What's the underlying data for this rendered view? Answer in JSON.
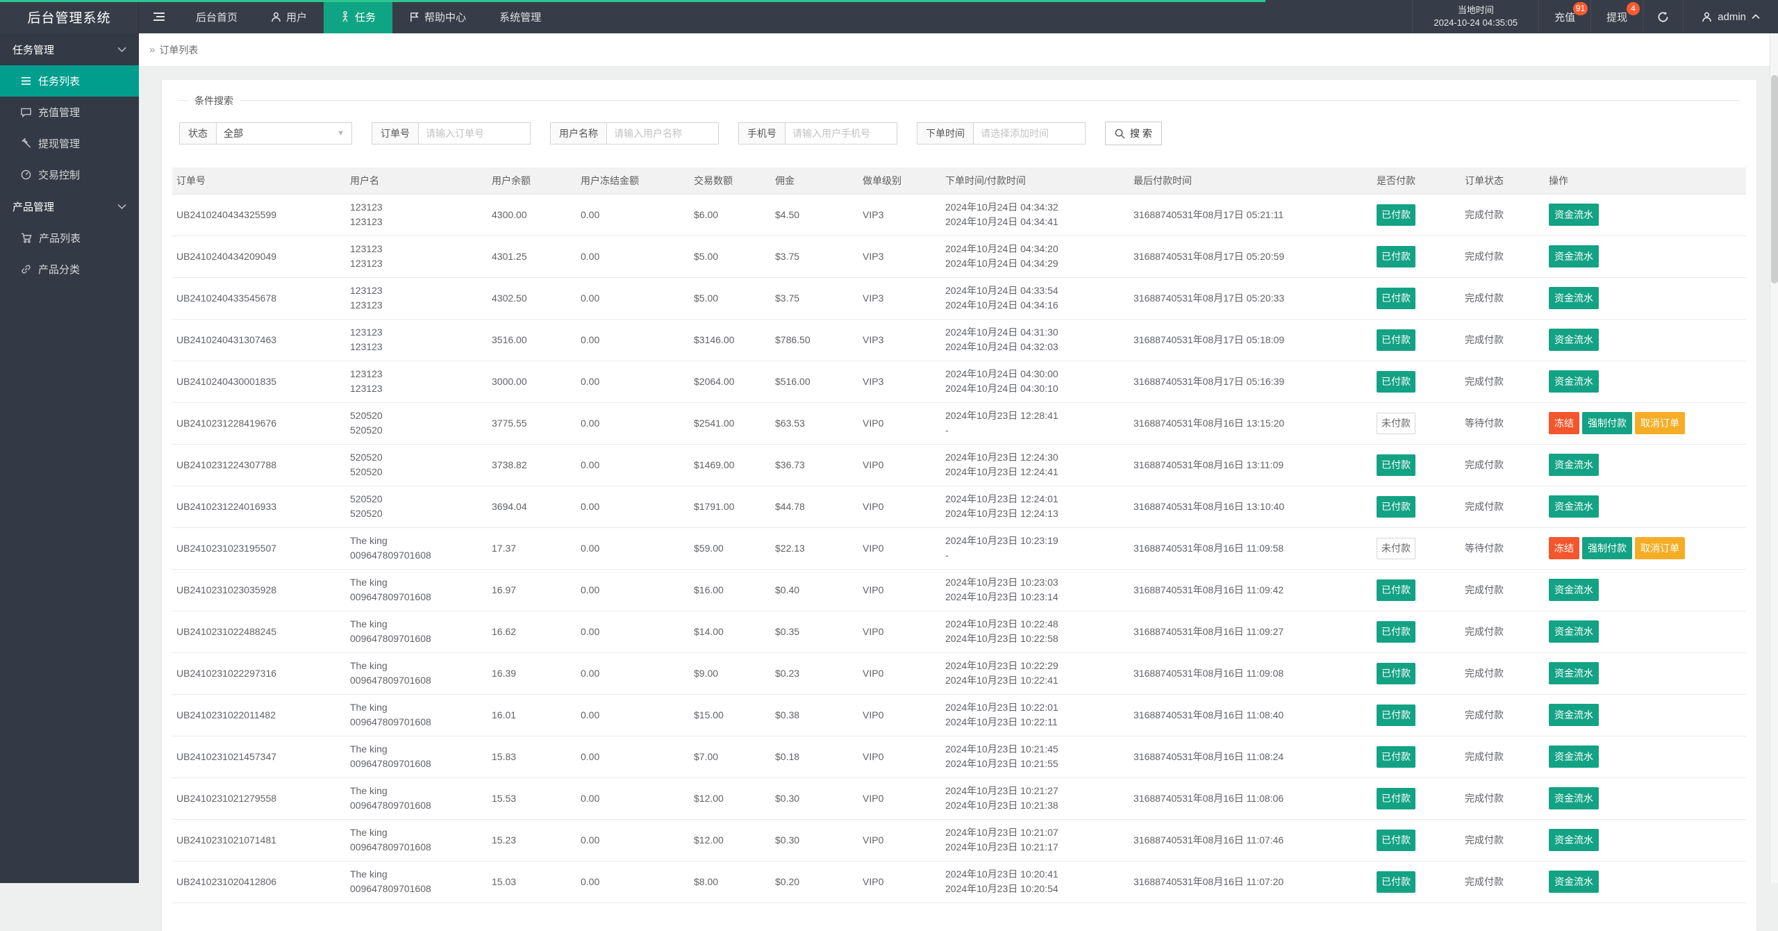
{
  "colors": {
    "teal": "#13a284",
    "red": "#f4572e",
    "amber": "#f6ad26",
    "nav_active": "#0fa584",
    "sidebar_active": "#019e8e",
    "badge_red": "#f85b32",
    "progress_green": "#2ec690"
  },
  "topbar": {
    "brand": "后台管理系统",
    "nav": [
      {
        "label": "后台首页"
      },
      {
        "label": "用户"
      },
      {
        "label": "任务",
        "active": true
      },
      {
        "label": "帮助中心"
      },
      {
        "label": "系统管理"
      }
    ],
    "local_time_label": "当地时间",
    "local_time": "2024-10-24 04:35:05",
    "recharge_label": "充值",
    "recharge_badge": "91",
    "withdraw_label": "提现",
    "withdraw_badge": "4",
    "username": "admin"
  },
  "sidebar": {
    "groups": [
      {
        "label": "任务管理",
        "items": [
          {
            "label": "任务列表",
            "active": true
          },
          {
            "label": "充值管理"
          },
          {
            "label": "提现管理"
          },
          {
            "label": "交易控制"
          }
        ]
      },
      {
        "label": "产品管理",
        "items": [
          {
            "label": "产品列表"
          },
          {
            "label": "产品分类"
          }
        ]
      }
    ]
  },
  "breadcrumb": "订单列表",
  "filters": {
    "legend": "条件搜索",
    "status_label": "状态",
    "status_value": "全部",
    "order_no_label": "订单号",
    "order_no_placeholder": "请输入订单号",
    "user_label": "用户名称",
    "user_placeholder": "请输入用户名称",
    "phone_label": "手机号",
    "phone_placeholder": "请输入用户手机号",
    "time_label": "下单时间",
    "time_placeholder": "请选择添加时间",
    "search_label": "搜 索"
  },
  "table": {
    "headers": [
      "订单号",
      "用户名",
      "用户余额",
      "用户冻结金额",
      "交易数额",
      "佣金",
      "做单级别",
      "下单时间/付款时间",
      "最后付款时间",
      "是否付款",
      "订单状态",
      "操作"
    ],
    "rows": [
      {
        "order_no": "UB2410240434325599",
        "user_line1": "123123",
        "user_line2": "123123",
        "balance": "4300.00",
        "frozen": "0.00",
        "amount": "$6.00",
        "commission": "$4.50",
        "level": "VIP3",
        "order_time": "2024年10月24日 04:34:32",
        "pay_time": "2024年10月24日 04:34:41",
        "last_pay_time": "31688740531年08月17日 05:21:11",
        "paid": true,
        "paid_label": "已付款",
        "status": "完成付款",
        "actions": [
          {
            "label": "资金流水",
            "type": "flow"
          }
        ]
      },
      {
        "order_no": "UB2410240434209049",
        "user_line1": "123123",
        "user_line2": "123123",
        "balance": "4301.25",
        "frozen": "0.00",
        "amount": "$5.00",
        "commission": "$3.75",
        "level": "VIP3",
        "order_time": "2024年10月24日 04:34:20",
        "pay_time": "2024年10月24日 04:34:29",
        "last_pay_time": "31688740531年08月17日 05:20:59",
        "paid": true,
        "paid_label": "已付款",
        "status": "完成付款",
        "actions": [
          {
            "label": "资金流水",
            "type": "flow"
          }
        ]
      },
      {
        "order_no": "UB2410240433545678",
        "user_line1": "123123",
        "user_line2": "123123",
        "balance": "4302.50",
        "frozen": "0.00",
        "amount": "$5.00",
        "commission": "$3.75",
        "level": "VIP3",
        "order_time": "2024年10月24日 04:33:54",
        "pay_time": "2024年10月24日 04:34:16",
        "last_pay_time": "31688740531年08月17日 05:20:33",
        "paid": true,
        "paid_label": "已付款",
        "status": "完成付款",
        "actions": [
          {
            "label": "资金流水",
            "type": "flow"
          }
        ]
      },
      {
        "order_no": "UB2410240431307463",
        "user_line1": "123123",
        "user_line2": "123123",
        "balance": "3516.00",
        "frozen": "0.00",
        "amount": "$3146.00",
        "commission": "$786.50",
        "level": "VIP3",
        "order_time": "2024年10月24日 04:31:30",
        "pay_time": "2024年10月24日 04:32:03",
        "last_pay_time": "31688740531年08月17日 05:18:09",
        "paid": true,
        "paid_label": "已付款",
        "status": "完成付款",
        "actions": [
          {
            "label": "资金流水",
            "type": "flow"
          }
        ]
      },
      {
        "order_no": "UB2410240430001835",
        "user_line1": "123123",
        "user_line2": "123123",
        "balance": "3000.00",
        "frozen": "0.00",
        "amount": "$2064.00",
        "commission": "$516.00",
        "level": "VIP3",
        "order_time": "2024年10月24日 04:30:00",
        "pay_time": "2024年10月24日 04:30:10",
        "last_pay_time": "31688740531年08月17日 05:16:39",
        "paid": true,
        "paid_label": "已付款",
        "status": "完成付款",
        "actions": [
          {
            "label": "资金流水",
            "type": "flow"
          }
        ]
      },
      {
        "order_no": "UB2410231228419676",
        "user_line1": "520520",
        "user_line2": "520520",
        "balance": "3775.55",
        "frozen": "0.00",
        "amount": "$2541.00",
        "commission": "$63.53",
        "level": "VIP0",
        "order_time": "2024年10月23日 12:28:41",
        "pay_time": "-",
        "last_pay_time": "31688740531年08月16日 13:15:20",
        "paid": false,
        "paid_label": "未付款",
        "status": "等待付款",
        "actions": [
          {
            "label": "冻结",
            "type": "freeze"
          },
          {
            "label": "强制付款",
            "type": "force"
          },
          {
            "label": "取消订单",
            "type": "cancel"
          }
        ]
      },
      {
        "order_no": "UB2410231224307788",
        "user_line1": "520520",
        "user_line2": "520520",
        "balance": "3738.82",
        "frozen": "0.00",
        "amount": "$1469.00",
        "commission": "$36.73",
        "level": "VIP0",
        "order_time": "2024年10月23日 12:24:30",
        "pay_time": "2024年10月23日 12:24:41",
        "last_pay_time": "31688740531年08月16日 13:11:09",
        "paid": true,
        "paid_label": "已付款",
        "status": "完成付款",
        "actions": [
          {
            "label": "资金流水",
            "type": "flow"
          }
        ]
      },
      {
        "order_no": "UB2410231224016933",
        "user_line1": "520520",
        "user_line2": "520520",
        "balance": "3694.04",
        "frozen": "0.00",
        "amount": "$1791.00",
        "commission": "$44.78",
        "level": "VIP0",
        "order_time": "2024年10月23日 12:24:01",
        "pay_time": "2024年10月23日 12:24:13",
        "last_pay_time": "31688740531年08月16日 13:10:40",
        "paid": true,
        "paid_label": "已付款",
        "status": "完成付款",
        "actions": [
          {
            "label": "资金流水",
            "type": "flow"
          }
        ]
      },
      {
        "order_no": "UB2410231023195507",
        "user_line1": "The king",
        "user_line2": "009647809701608",
        "balance": "17.37",
        "frozen": "0.00",
        "amount": "$59.00",
        "commission": "$22.13",
        "level": "VIP0",
        "order_time": "2024年10月23日 10:23:19",
        "pay_time": "-",
        "last_pay_time": "31688740531年08月16日 11:09:58",
        "paid": false,
        "paid_label": "未付款",
        "status": "等待付款",
        "actions": [
          {
            "label": "冻结",
            "type": "freeze"
          },
          {
            "label": "强制付款",
            "type": "force"
          },
          {
            "label": "取消订单",
            "type": "cancel"
          }
        ]
      },
      {
        "order_no": "UB2410231023035928",
        "user_line1": "The king",
        "user_line2": "009647809701608",
        "balance": "16.97",
        "frozen": "0.00",
        "amount": "$16.00",
        "commission": "$0.40",
        "level": "VIP0",
        "order_time": "2024年10月23日 10:23:03",
        "pay_time": "2024年10月23日 10:23:14",
        "last_pay_time": "31688740531年08月16日 11:09:42",
        "paid": true,
        "paid_label": "已付款",
        "status": "完成付款",
        "actions": [
          {
            "label": "资金流水",
            "type": "flow"
          }
        ]
      },
      {
        "order_no": "UB2410231022488245",
        "user_line1": "The king",
        "user_line2": "009647809701608",
        "balance": "16.62",
        "frozen": "0.00",
        "amount": "$14.00",
        "commission": "$0.35",
        "level": "VIP0",
        "order_time": "2024年10月23日 10:22:48",
        "pay_time": "2024年10月23日 10:22:58",
        "last_pay_time": "31688740531年08月16日 11:09:27",
        "paid": true,
        "paid_label": "已付款",
        "status": "完成付款",
        "actions": [
          {
            "label": "资金流水",
            "type": "flow"
          }
        ]
      },
      {
        "order_no": "UB2410231022297316",
        "user_line1": "The king",
        "user_line2": "009647809701608",
        "balance": "16.39",
        "frozen": "0.00",
        "amount": "$9.00",
        "commission": "$0.23",
        "level": "VIP0",
        "order_time": "2024年10月23日 10:22:29",
        "pay_time": "2024年10月23日 10:22:41",
        "last_pay_time": "31688740531年08月16日 11:09:08",
        "paid": true,
        "paid_label": "已付款",
        "status": "完成付款",
        "actions": [
          {
            "label": "资金流水",
            "type": "flow"
          }
        ]
      },
      {
        "order_no": "UB2410231022011482",
        "user_line1": "The king",
        "user_line2": "009647809701608",
        "balance": "16.01",
        "frozen": "0.00",
        "amount": "$15.00",
        "commission": "$0.38",
        "level": "VIP0",
        "order_time": "2024年10月23日 10:22:01",
        "pay_time": "2024年10月23日 10:22:11",
        "last_pay_time": "31688740531年08月16日 11:08:40",
        "paid": true,
        "paid_label": "已付款",
        "status": "完成付款",
        "actions": [
          {
            "label": "资金流水",
            "type": "flow"
          }
        ]
      },
      {
        "order_no": "UB2410231021457347",
        "user_line1": "The king",
        "user_line2": "009647809701608",
        "balance": "15.83",
        "frozen": "0.00",
        "amount": "$7.00",
        "commission": "$0.18",
        "level": "VIP0",
        "order_time": "2024年10月23日 10:21:45",
        "pay_time": "2024年10月23日 10:21:55",
        "last_pay_time": "31688740531年08月16日 11:08:24",
        "paid": true,
        "paid_label": "已付款",
        "status": "完成付款",
        "actions": [
          {
            "label": "资金流水",
            "type": "flow"
          }
        ]
      },
      {
        "order_no": "UB2410231021279558",
        "user_line1": "The king",
        "user_line2": "009647809701608",
        "balance": "15.53",
        "frozen": "0.00",
        "amount": "$12.00",
        "commission": "$0.30",
        "level": "VIP0",
        "order_time": "2024年10月23日 10:21:27",
        "pay_time": "2024年10月23日 10:21:38",
        "last_pay_time": "31688740531年08月16日 11:08:06",
        "paid": true,
        "paid_label": "已付款",
        "status": "完成付款",
        "actions": [
          {
            "label": "资金流水",
            "type": "flow"
          }
        ]
      },
      {
        "order_no": "UB2410231021071481",
        "user_line1": "The king",
        "user_line2": "009647809701608",
        "balance": "15.23",
        "frozen": "0.00",
        "amount": "$12.00",
        "commission": "$0.30",
        "level": "VIP0",
        "order_time": "2024年10月23日 10:21:07",
        "pay_time": "2024年10月23日 10:21:17",
        "last_pay_time": "31688740531年08月16日 11:07:46",
        "paid": true,
        "paid_label": "已付款",
        "status": "完成付款",
        "actions": [
          {
            "label": "资金流水",
            "type": "flow"
          }
        ]
      },
      {
        "order_no": "UB2410231020412806",
        "user_line1": "The king",
        "user_line2": "009647809701608",
        "balance": "15.03",
        "frozen": "0.00",
        "amount": "$8.00",
        "commission": "$0.20",
        "level": "VIP0",
        "order_time": "2024年10月23日 10:20:41",
        "pay_time": "2024年10月23日 10:20:54",
        "last_pay_time": "31688740531年08月16日 11:07:20",
        "paid": true,
        "paid_label": "已付款",
        "status": "完成付款",
        "actions": [
          {
            "label": "资金流水",
            "type": "flow"
          }
        ]
      }
    ]
  }
}
